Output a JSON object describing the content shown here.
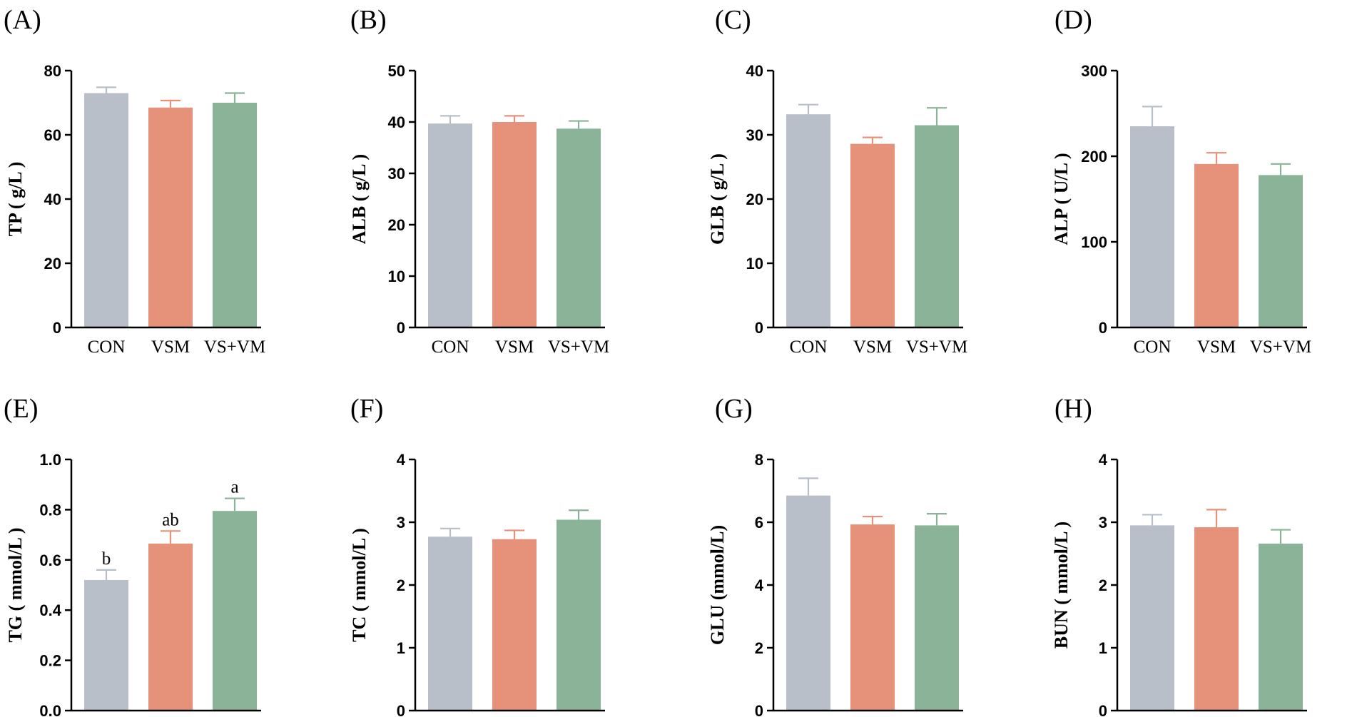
{
  "categories": [
    "CON",
    "VSM",
    "VS+VM"
  ],
  "colors": {
    "CON": "#b8bfc8",
    "VSM": "#e6927a",
    "VS+VM": "#8bb398"
  },
  "chart_data": [
    {
      "type": "bar",
      "panel": "(A)",
      "ylabel": "TP ( g/L )",
      "ylim": [
        0,
        80
      ],
      "yticks": [
        0,
        20,
        40,
        60,
        80
      ],
      "categories": [
        "CON",
        "VSM",
        "VS+VM"
      ],
      "values": [
        73,
        68.5,
        70
      ],
      "errors": [
        1.8,
        2.2,
        3
      ]
    },
    {
      "type": "bar",
      "panel": "(B)",
      "ylabel": "ALB ( g/L )",
      "ylim": [
        0,
        50
      ],
      "yticks": [
        0,
        10,
        20,
        30,
        40,
        50
      ],
      "categories": [
        "CON",
        "VSM",
        "VS+VM"
      ],
      "values": [
        39.7,
        40,
        38.7
      ],
      "errors": [
        1.5,
        1.2,
        1.5
      ]
    },
    {
      "type": "bar",
      "panel": "(C)",
      "ylabel": "GLB ( g/L )",
      "ylim": [
        0,
        40
      ],
      "yticks": [
        0,
        10,
        20,
        30,
        40
      ],
      "categories": [
        "CON",
        "VSM",
        "VS+VM"
      ],
      "values": [
        33.2,
        28.6,
        31.5
      ],
      "errors": [
        1.5,
        1,
        2.7
      ]
    },
    {
      "type": "bar",
      "panel": "(D)",
      "ylabel": "ALP ( U/L )",
      "ylim": [
        0,
        300
      ],
      "yticks": [
        0,
        100,
        200,
        300
      ],
      "categories": [
        "CON",
        "VSM",
        "VS+VM"
      ],
      "values": [
        235,
        191,
        178
      ],
      "errors": [
        23,
        13,
        13
      ]
    },
    {
      "type": "bar",
      "panel": "(E)",
      "ylabel": "TG ( mmol/L )",
      "ylim": [
        0,
        1.0
      ],
      "yticks": [
        "0.0",
        "0.2",
        "0.4",
        "0.6",
        "0.8",
        "1.0"
      ],
      "categories": [
        "CON",
        "VSM",
        "VS+VM"
      ],
      "values": [
        0.52,
        0.665,
        0.795
      ],
      "errors": [
        0.04,
        0.05,
        0.05
      ],
      "annotations": [
        "b",
        "ab",
        "a"
      ]
    },
    {
      "type": "bar",
      "panel": "(F)",
      "ylabel": "TC ( mmol/L )",
      "ylim": [
        0,
        4
      ],
      "yticks": [
        0,
        1,
        2,
        3,
        4
      ],
      "categories": [
        "CON",
        "VSM",
        "VS+VM"
      ],
      "values": [
        2.77,
        2.73,
        3.04
      ],
      "errors": [
        0.13,
        0.14,
        0.15
      ]
    },
    {
      "type": "bar",
      "panel": "(G)",
      "ylabel": "GLU (mmol/L)",
      "ylim": [
        0,
        8
      ],
      "yticks": [
        0,
        2,
        4,
        6,
        8
      ],
      "categories": [
        "CON",
        "VSM",
        "VS+VM"
      ],
      "values": [
        6.85,
        5.93,
        5.9
      ],
      "errors": [
        0.55,
        0.25,
        0.37
      ]
    },
    {
      "type": "bar",
      "panel": "(H)",
      "ylabel": "BUN ( mmol/L )",
      "ylim": [
        0,
        4
      ],
      "yticks": [
        0,
        1,
        2,
        3,
        4
      ],
      "categories": [
        "CON",
        "VSM",
        "VS+VM"
      ],
      "values": [
        2.95,
        2.92,
        2.66
      ],
      "errors": [
        0.17,
        0.28,
        0.22
      ]
    }
  ]
}
